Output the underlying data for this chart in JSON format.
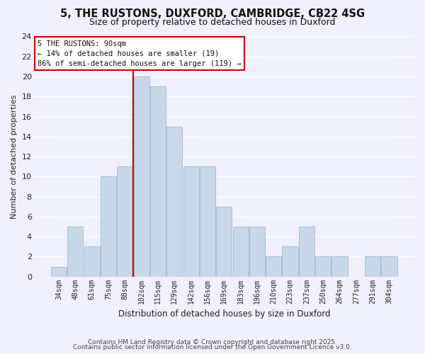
{
  "title": "5, THE RUSTONS, DUXFORD, CAMBRIDGE, CB22 4SG",
  "subtitle": "Size of property relative to detached houses in Duxford",
  "xlabel": "Distribution of detached houses by size in Duxford",
  "ylabel": "Number of detached properties",
  "bar_color": "#c8d8e8",
  "bar_edgecolor": "#a8c0d0",
  "categories": [
    "34sqm",
    "48sqm",
    "61sqm",
    "75sqm",
    "88sqm",
    "102sqm",
    "115sqm",
    "129sqm",
    "142sqm",
    "156sqm",
    "169sqm",
    "183sqm",
    "196sqm",
    "210sqm",
    "223sqm",
    "237sqm",
    "250sqm",
    "264sqm",
    "277sqm",
    "291sqm",
    "304sqm"
  ],
  "values": [
    1,
    5,
    3,
    10,
    11,
    20,
    19,
    15,
    11,
    11,
    7,
    5,
    5,
    2,
    3,
    5,
    2,
    2,
    0,
    2,
    2
  ],
  "vline_x_index": 4,
  "vline_color": "#cc0000",
  "annotation_title": "5 THE RUSTONS: 90sqm",
  "annotation_line1": "← 14% of detached houses are smaller (19)",
  "annotation_line2": "86% of semi-detached houses are larger (119) →",
  "ylim": [
    0,
    24
  ],
  "yticks": [
    0,
    2,
    4,
    6,
    8,
    10,
    12,
    14,
    16,
    18,
    20,
    22,
    24
  ],
  "footer1": "Contains HM Land Registry data © Crown copyright and database right 2025.",
  "footer2": "Contains public sector information licensed under the Open Government Licence v3.0.",
  "background_color": "#f0f0ff",
  "grid_color": "#ffffff"
}
